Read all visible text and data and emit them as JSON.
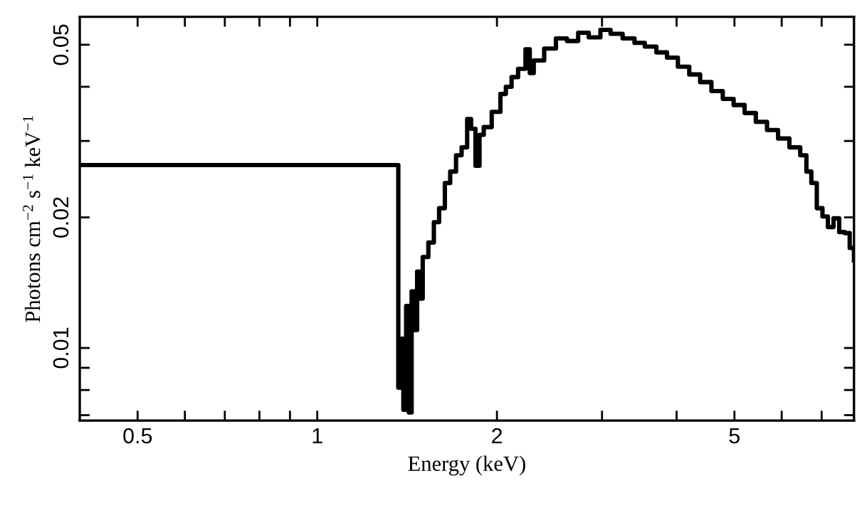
{
  "chart_data": {
    "type": "step",
    "xlabel": "Energy (keV)",
    "ylabel": "Photons cm$^{−2}$ s$^{−1}$ keV$^{−1}$",
    "log": "xy",
    "grid": false,
    "marker": "none",
    "line_style": "solid",
    "xlim": [
      0.4,
      7.93
    ],
    "ylim": [
      0.0068,
      0.058
    ],
    "xticks": [
      {
        "value": 0.5,
        "label": "0.5"
      },
      {
        "value": 0.6,
        "label": null
      },
      {
        "value": 0.7,
        "label": null
      },
      {
        "value": 0.8,
        "label": null
      },
      {
        "value": 0.9,
        "label": null
      },
      1,
      2,
      {
        "value": 3,
        "label": null
      },
      {
        "value": 4,
        "label": null
      },
      5,
      {
        "value": 6,
        "label": null
      },
      {
        "value": 7,
        "label": null
      }
    ],
    "yticks": [
      {
        "value": 0.007,
        "label": null
      },
      {
        "value": 0.008,
        "label": null
      },
      {
        "value": 0.009,
        "label": null
      },
      {
        "value": 0.01,
        "label": "0.01"
      },
      {
        "value": 0.02,
        "label": "0.02"
      },
      {
        "value": 0.03,
        "label": null
      },
      {
        "value": 0.04,
        "label": null
      },
      {
        "value": 0.05,
        "label": "0.05"
      }
    ],
    "series": [
      {
        "color": "#000000",
        "x": [
          0.4,
          1.367,
          1.379,
          1.394,
          1.409,
          1.424,
          1.439,
          1.455,
          1.47,
          1.486,
          1.502,
          1.535,
          1.568,
          1.6,
          1.636,
          1.67,
          1.708,
          1.745,
          1.783,
          1.81,
          1.841,
          1.87,
          1.901,
          1.96,
          2.027,
          2.07,
          2.116,
          2.17,
          2.233,
          2.27,
          2.305,
          2.4,
          2.511,
          2.62,
          2.736,
          2.85,
          2.981,
          3.1,
          3.248,
          3.4,
          3.538,
          3.7,
          3.855,
          4.02,
          4.2,
          4.38,
          4.575,
          4.78,
          4.984,
          5.2,
          5.43,
          5.67,
          5.916,
          6.18,
          6.445,
          6.6,
          6.727,
          6.87,
          7.022,
          7.17,
          7.328,
          7.49,
          7.648,
          7.8,
          7.93
        ],
        "values": [
          0.0264,
          0.0081,
          0.0105,
          0.0072,
          0.0125,
          0.0071,
          0.0135,
          0.011,
          0.015,
          0.013,
          0.0162,
          0.0175,
          0.0195,
          0.021,
          0.024,
          0.0255,
          0.0278,
          0.029,
          0.0337,
          0.032,
          0.0263,
          0.031,
          0.0323,
          0.035,
          0.0385,
          0.04,
          0.0421,
          0.044,
          0.0488,
          0.043,
          0.046,
          0.049,
          0.0517,
          0.051,
          0.0533,
          0.052,
          0.0541,
          0.053,
          0.0517,
          0.0505,
          0.0495,
          0.048,
          0.0467,
          0.0445,
          0.0427,
          0.041,
          0.0391,
          0.0375,
          0.0363,
          0.0348,
          0.0332,
          0.0318,
          0.0304,
          0.029,
          0.0278,
          0.0255,
          0.024,
          0.021,
          0.0201,
          0.019,
          0.0199,
          0.0185,
          0.0184,
          0.017,
          0.0159
        ]
      }
    ]
  }
}
